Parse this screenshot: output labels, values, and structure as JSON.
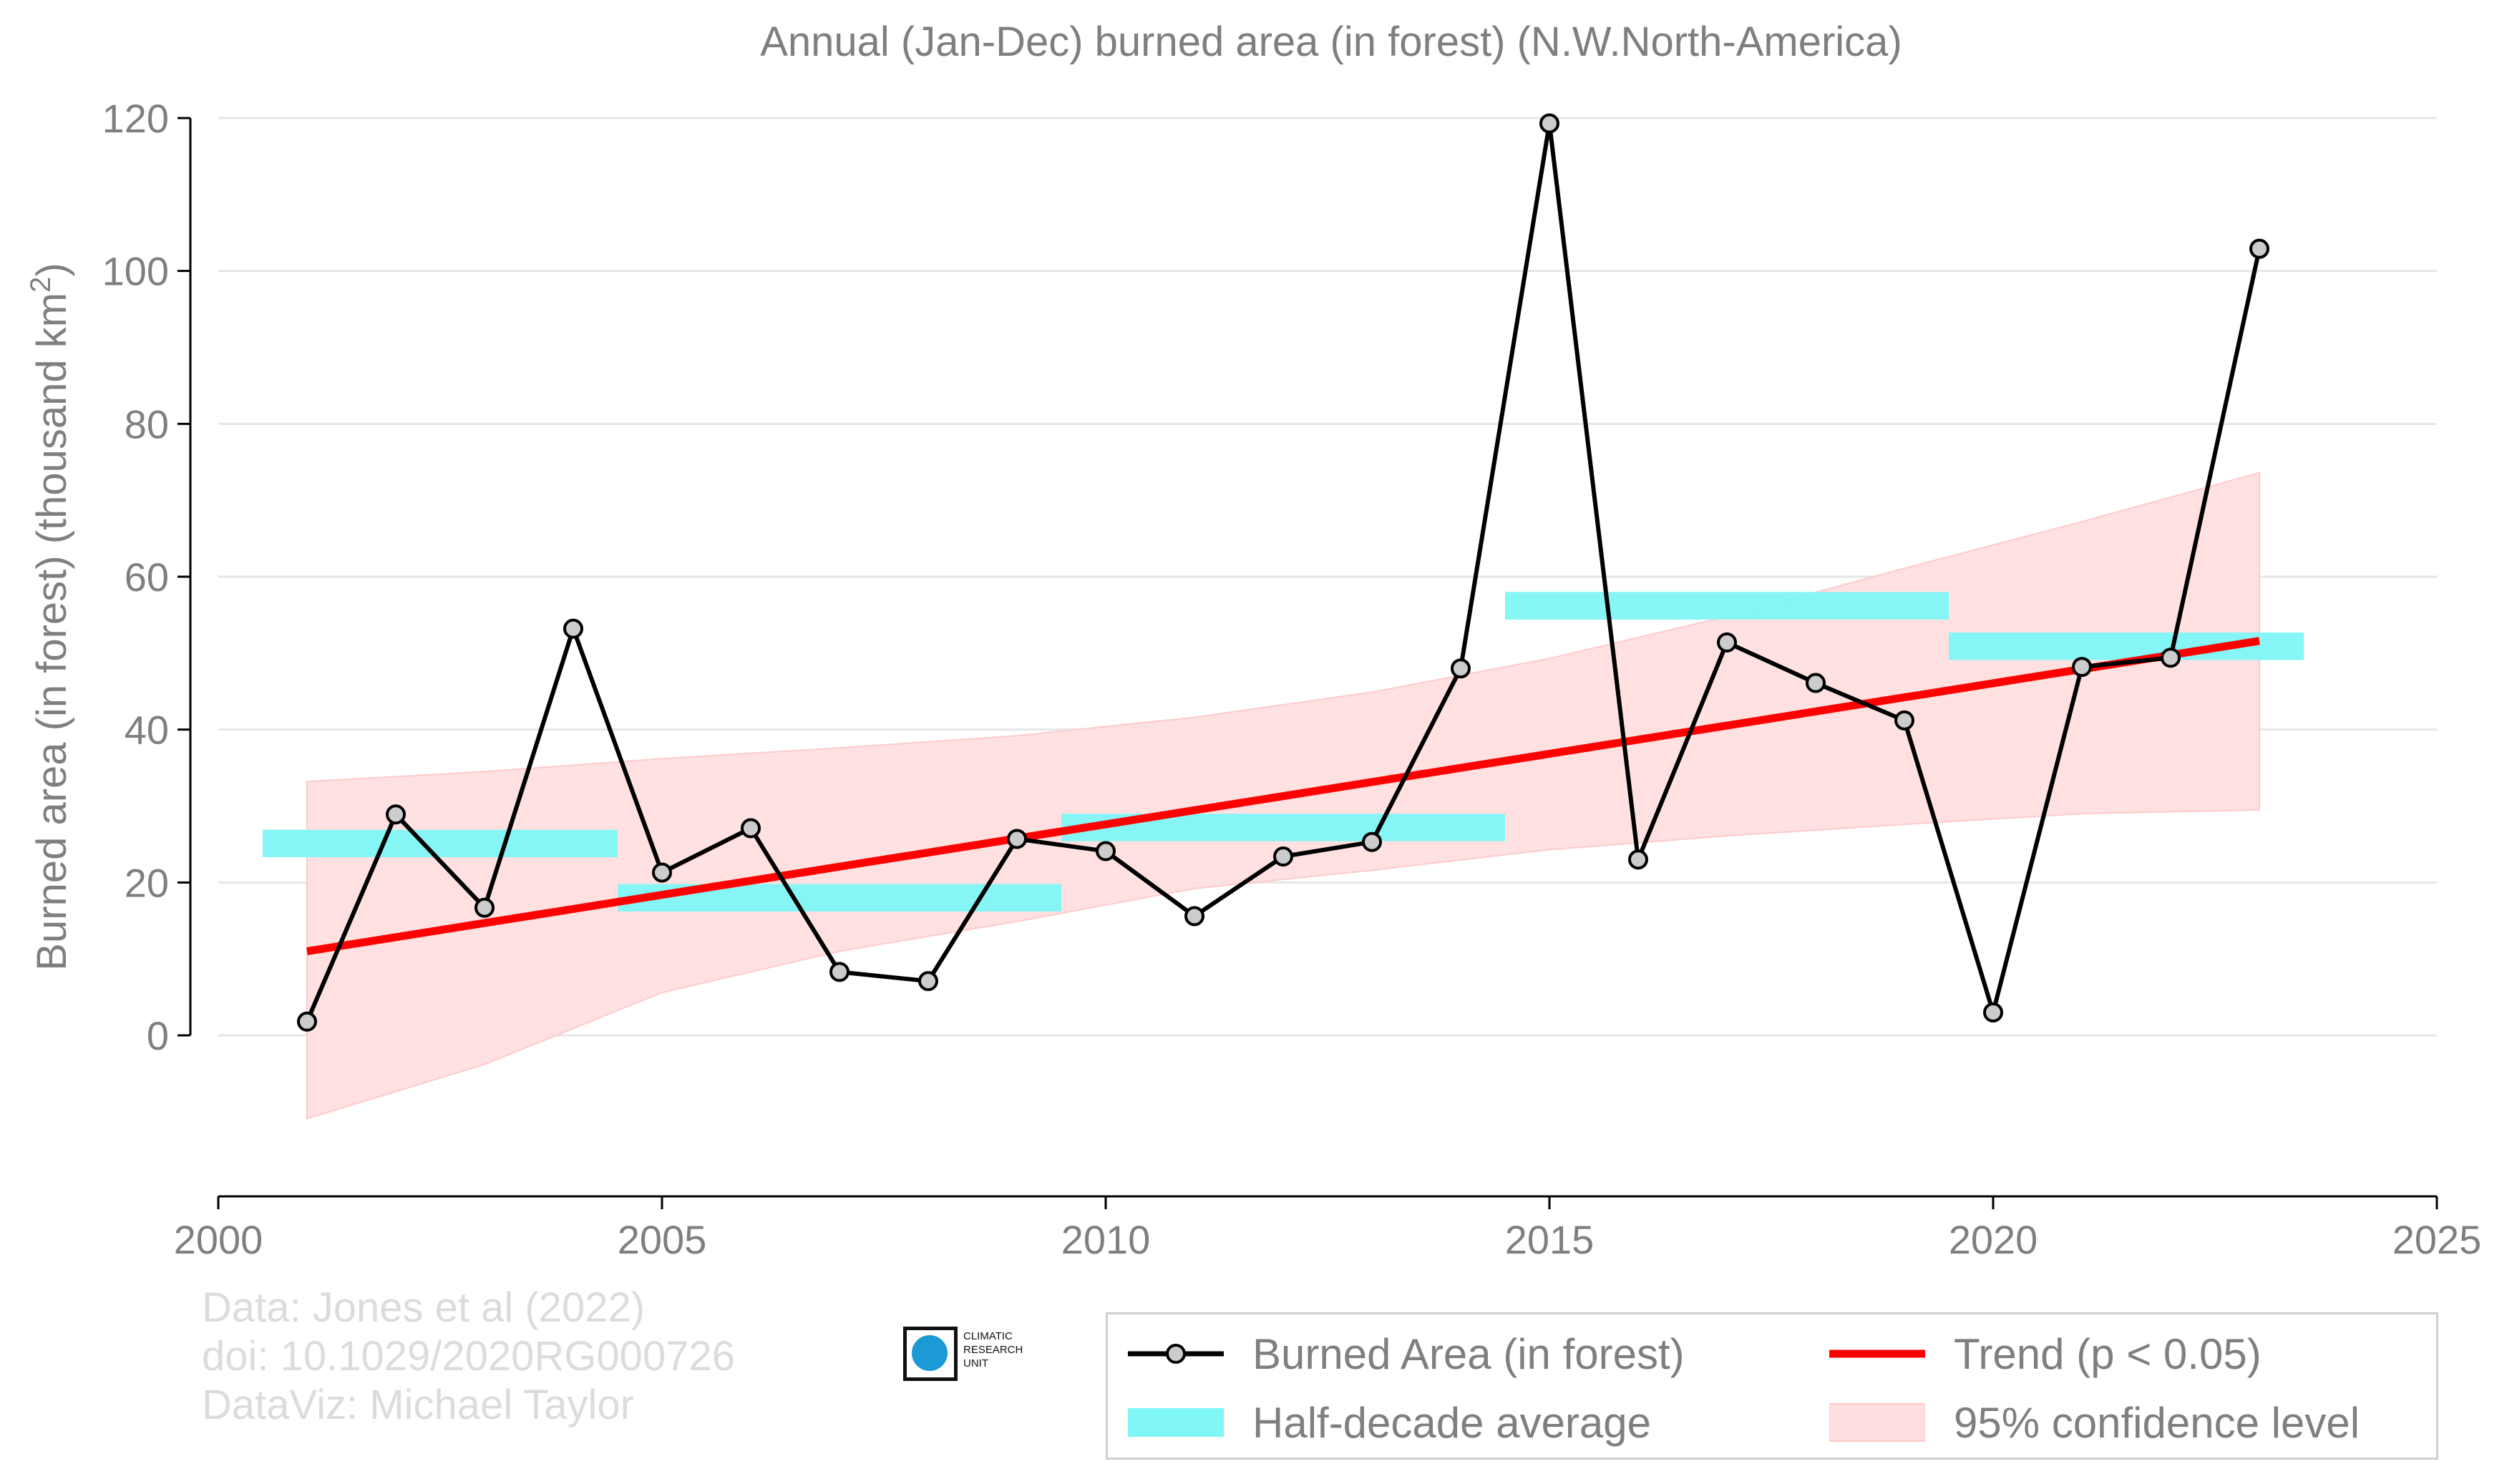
{
  "chart_data": {
    "type": "line",
    "title": "Annual (Jan-Dec) burned area (in forest) (N.W.North-America)",
    "ylabel": "Burned area (in forest) (thousand km",
    "ylabel_sup": "2",
    "ylabel_end": ")",
    "xlim": [
      2000,
      2025
    ],
    "ylim": [
      -21,
      124
    ],
    "x_ticks": [
      2000,
      2005,
      2010,
      2015,
      2020,
      2025
    ],
    "y_ticks": [
      0,
      20,
      40,
      60,
      80,
      100,
      120
    ],
    "grid": "horizontal",
    "legend_position": "bottom-right",
    "series": [
      {
        "name": "Burned Area (in forest)",
        "kind": "line-markers",
        "color": "#000000",
        "marker_fill": "#cccccc",
        "x": [
          2001,
          2002,
          2003,
          2004,
          2005,
          2006,
          2007,
          2008,
          2009,
          2010,
          2011,
          2012,
          2013,
          2014,
          2015,
          2016,
          2017,
          2018,
          2019,
          2020,
          2021,
          2022,
          2023
        ],
        "y": [
          1.8,
          28.9,
          16.7,
          53.2,
          21.3,
          27.1,
          8.3,
          7.1,
          25.7,
          24.1,
          15.6,
          23.4,
          25.3,
          48.0,
          119.3,
          23.0,
          51.4,
          46.1,
          41.2,
          3.0,
          48.2,
          49.4,
          102.9
        ]
      },
      {
        "name": "Half-decade average",
        "kind": "bars",
        "color": "#80f6f6",
        "segments": [
          {
            "x0": 2000.5,
            "x1": 2004.5,
            "y": 25.1,
            "h": 3.6
          },
          {
            "x0": 2004.5,
            "x1": 2009.5,
            "y": 18.0,
            "h": 3.6
          },
          {
            "x0": 2009.5,
            "x1": 2014.5,
            "y": 27.2,
            "h": 3.6
          },
          {
            "x0": 2014.5,
            "x1": 2019.5,
            "y": 56.2,
            "h": 3.6
          },
          {
            "x0": 2019.5,
            "x1": 2023.5,
            "y": 50.9,
            "h": 3.6
          }
        ]
      },
      {
        "name": "Trend (p < 0.05)",
        "kind": "line",
        "color": "#ff0000",
        "x": [
          2001,
          2023
        ],
        "y": [
          11.0,
          51.6
        ]
      },
      {
        "name": "95% confidence level",
        "kind": "band",
        "color": "#ffdddd",
        "x": [
          2001,
          2003,
          2005,
          2007,
          2009,
          2011,
          2013,
          2015,
          2017,
          2019,
          2021,
          2023
        ],
        "upper": [
          33.2,
          34.5,
          36.2,
          37.6,
          39.2,
          41.6,
          44.9,
          49.3,
          54.8,
          61.1,
          67.2,
          73.6
        ],
        "lower": [
          -10.9,
          -3.8,
          5.6,
          11.0,
          14.9,
          19.2,
          21.6,
          24.3,
          26.1,
          27.6,
          29.0,
          29.5
        ]
      }
    ]
  },
  "credits": {
    "line1": "Data: Jones et al (2022)",
    "line2": "doi: 10.1029/2020RG000726",
    "line3": "DataViz: Michael Taylor"
  },
  "logo": {
    "text_lines": [
      "CLIMATIC",
      "RESEARCH",
      "UNIT"
    ]
  },
  "legend": {
    "items": [
      {
        "label": "Burned Area (in forest)"
      },
      {
        "label": "Trend (p < 0.05)"
      },
      {
        "label": "Half-decade average"
      },
      {
        "label": "95% confidence level"
      }
    ]
  }
}
